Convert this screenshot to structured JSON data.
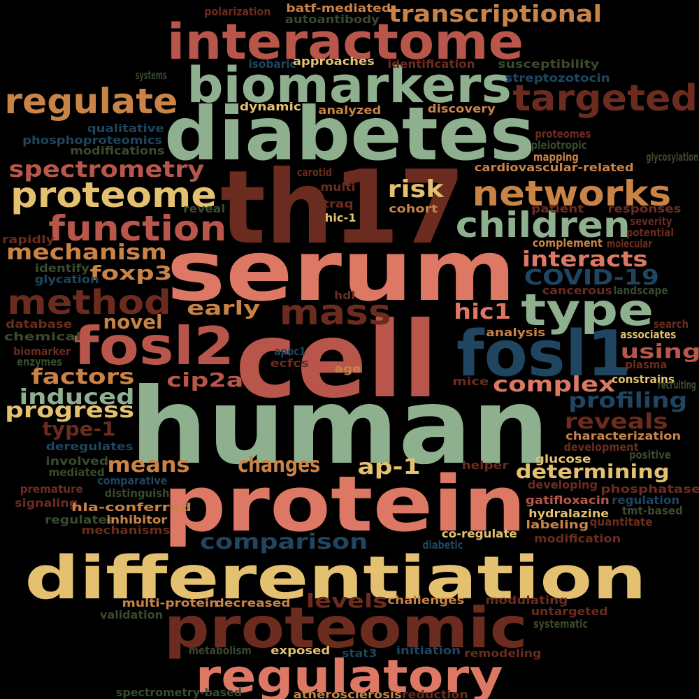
{
  "palette": {
    "background": "#000000",
    "sage": "#8FB08F",
    "brick": "#B9564B",
    "coral": "#DD7865",
    "brown": "#6B2C1F",
    "ochre": "#C98347",
    "sand": "#E3C170",
    "navy": "#1F4560",
    "olive": "#3A4A2E"
  },
  "words": [
    {
      "text": "human",
      "color": "#8FB08F"
    },
    {
      "text": "cell",
      "color": "#B9564B"
    },
    {
      "text": "serum",
      "color": "#DD7865"
    },
    {
      "text": "th17",
      "color": "#6B2C1F"
    },
    {
      "text": "protein",
      "color": "#DD7865"
    },
    {
      "text": "differentiation",
      "color": "#E3C170"
    },
    {
      "text": "diabetes",
      "color": "#8FB08F"
    },
    {
      "text": "proteomic",
      "color": "#6B2C1F"
    },
    {
      "text": "fosl1",
      "color": "#1F4560"
    },
    {
      "text": "fosl2",
      "color": "#B9564B"
    },
    {
      "text": "interactome",
      "color": "#B9564B"
    },
    {
      "text": "regulatory",
      "color": "#DD7865"
    },
    {
      "text": "biomarkers",
      "color": "#8FB08F"
    },
    {
      "text": "type",
      "color": "#8FB08F"
    },
    {
      "text": "networks",
      "color": "#C98347"
    },
    {
      "text": "proteome",
      "color": "#E3C170"
    },
    {
      "text": "function",
      "color": "#B9564B"
    },
    {
      "text": "targeted",
      "color": "#6B2C1F"
    },
    {
      "text": "regulate",
      "color": "#C98347"
    },
    {
      "text": "method",
      "color": "#6B2C1F"
    },
    {
      "text": "children",
      "color": "#8FB08F"
    },
    {
      "text": "mass",
      "color": "#6B2C1F"
    },
    {
      "text": "transcriptional",
      "color": "#C98347"
    },
    {
      "text": "spectrometry",
      "color": "#B9564B"
    },
    {
      "text": "risk",
      "color": "#E3C170"
    },
    {
      "text": "mechanism",
      "color": "#C98347"
    },
    {
      "text": "interacts",
      "color": "#DD7865"
    },
    {
      "text": "COVID-19",
      "color": "#1F4560"
    },
    {
      "text": "foxp3",
      "color": "#C98347"
    },
    {
      "text": "early",
      "color": "#C98347"
    },
    {
      "text": "novel",
      "color": "#C98347"
    },
    {
      "text": "hic1",
      "color": "#DD7865"
    },
    {
      "text": "using",
      "color": "#B9564B"
    },
    {
      "text": "factors",
      "color": "#C98347"
    },
    {
      "text": "cip2a",
      "color": "#B9564B"
    },
    {
      "text": "complex",
      "color": "#DD7865"
    },
    {
      "text": "induced",
      "color": "#8FB08F"
    },
    {
      "text": "profiling",
      "color": "#1F4560"
    },
    {
      "text": "progress",
      "color": "#E3C170"
    },
    {
      "text": "reveals",
      "color": "#6B2C1F"
    },
    {
      "text": "type-1",
      "color": "#6B2C1F"
    },
    {
      "text": "means",
      "color": "#C98347"
    },
    {
      "text": "changes",
      "color": "#C98347"
    },
    {
      "text": "ap-1",
      "color": "#E3C170"
    },
    {
      "text": "determining",
      "color": "#E3C170"
    },
    {
      "text": "comparison",
      "color": "#1F4560"
    },
    {
      "text": "levels",
      "color": "#6B2C1F"
    },
    {
      "text": "polarization",
      "color": "#6B2C1F"
    },
    {
      "text": "batf-mediated",
      "color": "#C98347"
    },
    {
      "text": "autoantibody",
      "color": "#3A4A2E"
    },
    {
      "text": "isobaric",
      "color": "#1F4560"
    },
    {
      "text": "approaches",
      "color": "#E3C170"
    },
    {
      "text": "identification",
      "color": "#6B2C1F"
    },
    {
      "text": "susceptibility",
      "color": "#3A4A2E"
    },
    {
      "text": "streptozotocin",
      "color": "#1F4560"
    },
    {
      "text": "systems",
      "color": "#3A4A2E"
    },
    {
      "text": "dynamic",
      "color": "#E3C170"
    },
    {
      "text": "analyzed",
      "color": "#C98347"
    },
    {
      "text": "discovery",
      "color": "#C98347"
    },
    {
      "text": "qualitative",
      "color": "#1F4560"
    },
    {
      "text": "proteomes",
      "color": "#6B2C1F"
    },
    {
      "text": "phosphoproteomics",
      "color": "#1F4560"
    },
    {
      "text": "pleiotropic",
      "color": "#3A4A2E"
    },
    {
      "text": "modifications",
      "color": "#3A4A2E"
    },
    {
      "text": "mapping",
      "color": "#C98347"
    },
    {
      "text": "glycosylation",
      "color": "#3A4A2E"
    },
    {
      "text": "carotid",
      "color": "#6B2C1F"
    },
    {
      "text": "cardiovascular-related",
      "color": "#C98347"
    },
    {
      "text": "multi",
      "color": "#6B2C1F"
    },
    {
      "text": "itraq",
      "color": "#6B2C1F"
    },
    {
      "text": "patient",
      "color": "#6B2C1F"
    },
    {
      "text": "responses",
      "color": "#6B2C1F"
    },
    {
      "text": "reveal",
      "color": "#3A4A2E"
    },
    {
      "text": "cohort",
      "color": "#C98347"
    },
    {
      "text": "severity",
      "color": "#6B2C1F"
    },
    {
      "text": "hic-1",
      "color": "#E3C170"
    },
    {
      "text": "potential",
      "color": "#6B2C1F"
    },
    {
      "text": "rapidly",
      "color": "#6B2C1F"
    },
    {
      "text": "complement",
      "color": "#C98347"
    },
    {
      "text": "molecular",
      "color": "#6B2C1F"
    },
    {
      "text": "identify",
      "color": "#3A4A2E"
    },
    {
      "text": "glycation",
      "color": "#1F4560"
    },
    {
      "text": "cancerous",
      "color": "#6B2C1F"
    },
    {
      "text": "landscape",
      "color": "#3A4A2E"
    },
    {
      "text": "hdl",
      "color": "#6B2C1F"
    },
    {
      "text": "database",
      "color": "#6B2C1F"
    },
    {
      "text": "search",
      "color": "#6B2C1F"
    },
    {
      "text": "analysis",
      "color": "#C98347"
    },
    {
      "text": "associates",
      "color": "#E3C170"
    },
    {
      "text": "chemical",
      "color": "#3A4A2E"
    },
    {
      "text": "biomarker",
      "color": "#6B2C1F"
    },
    {
      "text": "apoc1",
      "color": "#1F4560"
    },
    {
      "text": "enzymes",
      "color": "#3A4A2E"
    },
    {
      "text": "ecfcs",
      "color": "#6B2C1F"
    },
    {
      "text": "age",
      "color": "#C98347"
    },
    {
      "text": "plasma",
      "color": "#6B2C1F"
    },
    {
      "text": "constrains",
      "color": "#E3C170"
    },
    {
      "text": "mice",
      "color": "#6B2C1F"
    },
    {
      "text": "recruiting",
      "color": "#3A4A2E"
    },
    {
      "text": "characterization",
      "color": "#C98347"
    },
    {
      "text": "deregulates",
      "color": "#1F4560"
    },
    {
      "text": "development",
      "color": "#6B2C1F"
    },
    {
      "text": "positive",
      "color": "#3A4A2E"
    },
    {
      "text": "involved",
      "color": "#3A4A2E"
    },
    {
      "text": "glucose",
      "color": "#E3C170"
    },
    {
      "text": "mediated",
      "color": "#3A4A2E"
    },
    {
      "text": "helper",
      "color": "#6B2C1F"
    },
    {
      "text": "comparative",
      "color": "#1F4560"
    },
    {
      "text": "developing",
      "color": "#6B2C1F"
    },
    {
      "text": "premature",
      "color": "#6B2C1F"
    },
    {
      "text": "phosphatase",
      "color": "#6B2C1F"
    },
    {
      "text": "distinguish",
      "color": "#3A4A2E"
    },
    {
      "text": "gatifloxacin",
      "color": "#B9564B"
    },
    {
      "text": "regulation",
      "color": "#1F4560"
    },
    {
      "text": "signaling",
      "color": "#6B2C1F"
    },
    {
      "text": "hla-conferred",
      "color": "#C98347"
    },
    {
      "text": "tmt-based",
      "color": "#3A4A2E"
    },
    {
      "text": "hydralazine",
      "color": "#E3C170"
    },
    {
      "text": "regulates",
      "color": "#3A4A2E"
    },
    {
      "text": "inhibitor",
      "color": "#C98347"
    },
    {
      "text": "labeling",
      "color": "#C98347"
    },
    {
      "text": "quantitate",
      "color": "#6B2C1F"
    },
    {
      "text": "mechanisms",
      "color": "#6B2C1F"
    },
    {
      "text": "co-regulate",
      "color": "#E3C170"
    },
    {
      "text": "diabetic",
      "color": "#1F4560"
    },
    {
      "text": "modification",
      "color": "#6B2C1F"
    },
    {
      "text": "challenges",
      "color": "#C98347"
    },
    {
      "text": "modulating",
      "color": "#6B2C1F"
    },
    {
      "text": "multi-protein",
      "color": "#C98347"
    },
    {
      "text": "decreased",
      "color": "#C98347"
    },
    {
      "text": "validation",
      "color": "#3A4A2E"
    },
    {
      "text": "untargeted",
      "color": "#6B2C1F"
    },
    {
      "text": "systematic",
      "color": "#3A4A2E"
    },
    {
      "text": "metabolism",
      "color": "#3A4A2E"
    },
    {
      "text": "exposed",
      "color": "#E3C170"
    },
    {
      "text": "stat3",
      "color": "#1F4560"
    },
    {
      "text": "initiation",
      "color": "#1F4560"
    },
    {
      "text": "remodeling",
      "color": "#6B2C1F"
    },
    {
      "text": "spectrometry-based",
      "color": "#3A4A2E"
    },
    {
      "text": "atherosclerosis",
      "color": "#C98347"
    },
    {
      "text": "reduction",
      "color": "#6B2C1F"
    }
  ]
}
